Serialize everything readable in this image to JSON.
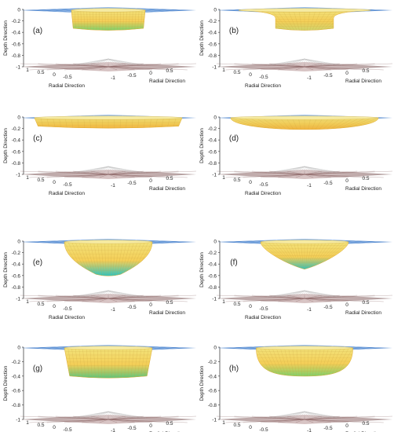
{
  "figure": {
    "axis_labels": {
      "depth": "Depth Direction",
      "radial": "Radial Direction"
    },
    "depth_ticks": [
      "0",
      "-0.2",
      "-0.4",
      "-0.6",
      "-0.8",
      "-1"
    ],
    "radial_ticks_left": [
      "1",
      "0.5",
      "0",
      "-0.5"
    ],
    "radial_ticks_right": [
      "-1",
      "-0.5",
      "0",
      "0.5"
    ],
    "colors": {
      "surface": "#3b7fd1",
      "surface_light": "#8fb8e8",
      "floor": "#8a5a5a",
      "crater_top": "#f2e27a",
      "crater_mid": "#f5c040",
      "crater_green": "#7fcf6a",
      "crater_cyan": "#2cc4c0",
      "grid": "#b8b8b8"
    },
    "panels": [
      {
        "label": "(a)",
        "shape": "cylinder",
        "topWidth": 0.42,
        "bottomWidth": 0.4,
        "depth": 0.33,
        "bottomColor": "#7fcf6a"
      },
      {
        "label": "(b)",
        "shape": "flared",
        "topWidth": 0.75,
        "bottomWidth": 0.33,
        "depth": 0.33,
        "bottomColor": "#cfd36a"
      },
      {
        "label": "(c)",
        "shape": "pan",
        "topWidth": 0.84,
        "bottomWidth": 0.8,
        "depth": 0.16,
        "bottomColor": "#f0b240"
      },
      {
        "label": "(d)",
        "shape": "bowl",
        "topWidth": 0.84,
        "bottomWidth": 0.45,
        "depth": 0.19,
        "bottomColor": "#f0b240"
      },
      {
        "label": "(e)",
        "shape": "u",
        "topWidth": 0.5,
        "bottomWidth": 0.28,
        "depth": 0.58,
        "bottomColor": "#2cc4c0"
      },
      {
        "label": "(f)",
        "shape": "v",
        "topWidth": 0.5,
        "bottomWidth": 0.1,
        "depth": 0.49,
        "bottomColor": "#2cc4c0"
      },
      {
        "label": "(g)",
        "shape": "cylinder",
        "topWidth": 0.5,
        "bottomWidth": 0.44,
        "depth": 0.4,
        "bottomColor": "#5fc47a"
      },
      {
        "label": "(h)",
        "shape": "bowl",
        "topWidth": 0.55,
        "bottomWidth": 0.35,
        "depth": 0.38,
        "bottomColor": "#7fcf6a"
      }
    ]
  }
}
